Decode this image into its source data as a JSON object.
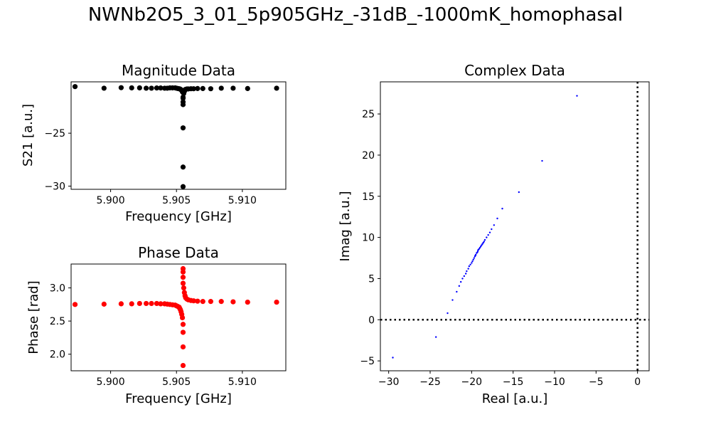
{
  "suptitle": "NWNb2O5_3_01_5p905GHz_-31dB_-1000mK_homophasal",
  "colors": {
    "magnitude": "#000000",
    "phase": "#ff0000",
    "complex": "#0000ff"
  },
  "chart_data": [
    {
      "id": "magnitude",
      "type": "scatter",
      "title": "Magnitude Data",
      "xlabel": "Frequency [GHz]",
      "ylabel": "S21 [a.u.]",
      "xlim": [
        5.897,
        5.9133
      ],
      "ylim": [
        -30.3,
        -20.15
      ],
      "xticks": [
        5.9,
        5.905,
        5.91
      ],
      "xtick_labels": [
        "5.900",
        "5.905",
        "5.910"
      ],
      "yticks": [
        -30,
        -25
      ],
      "ytick_labels": [
        "−30",
        "−25"
      ],
      "grid": false,
      "x": [
        5.8973,
        5.8995,
        5.9008,
        5.9016,
        5.9022,
        5.9027,
        5.9031,
        5.9035,
        5.9038,
        5.9041,
        5.9043,
        5.9045,
        5.9047,
        5.9049,
        5.905,
        5.9051,
        5.9052,
        5.90525,
        5.9053,
        5.90535,
        5.9054,
        5.90545,
        5.90545,
        5.9055,
        5.9055,
        5.9055,
        5.9055,
        5.9055,
        5.9055,
        5.9055,
        5.90555,
        5.9056,
        5.90565,
        5.9057,
        5.9058,
        5.9059,
        5.9061,
        5.9063,
        5.9066,
        5.907,
        5.9076,
        5.9084,
        5.9093,
        5.9104,
        5.9126
      ],
      "y": [
        -20.6,
        -20.75,
        -20.7,
        -20.72,
        -20.72,
        -20.75,
        -20.75,
        -20.73,
        -20.73,
        -20.75,
        -20.75,
        -20.72,
        -20.72,
        -20.72,
        -20.75,
        -20.78,
        -20.8,
        -20.82,
        -20.85,
        -20.9,
        -20.95,
        -21.0,
        -21.1,
        -30.05,
        -28.2,
        -24.5,
        -22.3,
        -22.05,
        -21.7,
        -21.6,
        -21.25,
        -21.05,
        -20.9,
        -20.85,
        -20.82,
        -20.82,
        -20.8,
        -20.8,
        -20.78,
        -20.78,
        -20.8,
        -20.75,
        -20.75,
        -20.78,
        -20.75
      ]
    },
    {
      "id": "phase",
      "type": "scatter",
      "title": "Phase Data",
      "xlabel": "Frequency [GHz]",
      "ylabel": "Phase [rad]",
      "xlim": [
        5.897,
        5.9133
      ],
      "ylim": [
        1.75,
        3.36
      ],
      "xticks": [
        5.9,
        5.905,
        5.91
      ],
      "xtick_labels": [
        "5.900",
        "5.905",
        "5.910"
      ],
      "yticks": [
        2.0,
        2.5,
        3.0
      ],
      "ytick_labels": [
        "2.0",
        "2.5",
        "3.0"
      ],
      "grid": false,
      "x": [
        5.8973,
        5.8995,
        5.9008,
        5.9016,
        5.9022,
        5.9027,
        5.9031,
        5.9035,
        5.9038,
        5.9041,
        5.9043,
        5.9045,
        5.9047,
        5.9049,
        5.905,
        5.9051,
        5.9052,
        5.90525,
        5.9053,
        5.90535,
        5.9054,
        5.90545,
        5.9055,
        5.9055,
        5.9055,
        5.9055,
        5.9055,
        5.9055,
        5.9055,
        5.9055,
        5.90555,
        5.9056,
        5.90565,
        5.9057,
        5.9058,
        5.9059,
        5.9061,
        5.9063,
        5.9066,
        5.907,
        5.9076,
        5.9084,
        5.9093,
        5.9104,
        5.9126
      ],
      "y": [
        2.75,
        2.755,
        2.76,
        2.76,
        2.765,
        2.765,
        2.765,
        2.765,
        2.76,
        2.76,
        2.755,
        2.75,
        2.745,
        2.74,
        2.73,
        2.72,
        2.71,
        2.69,
        2.67,
        2.64,
        2.6,
        2.55,
        2.45,
        2.33,
        2.11,
        1.83,
        3.29,
        3.24,
        3.16,
        3.07,
        3.0,
        2.93,
        2.88,
        2.85,
        2.83,
        2.82,
        2.81,
        2.805,
        2.8,
        2.795,
        2.795,
        2.795,
        2.79,
        2.785,
        2.785
      ]
    },
    {
      "id": "complex",
      "type": "scatter",
      "title": "Complex Data",
      "xlabel": "Real [a.u.]",
      "ylabel": "Imag [a.u.]",
      "xlim": [
        -31.0,
        1.4
      ],
      "ylim": [
        -6.2,
        28.9
      ],
      "xticks": [
        -30,
        -25,
        -20,
        -15,
        -10,
        -5,
        0
      ],
      "xtick_labels": [
        "−30",
        "−25",
        "−20",
        "−15",
        "−10",
        "−5",
        "0"
      ],
      "yticks": [
        -5,
        0,
        5,
        10,
        15,
        20,
        25
      ],
      "ytick_labels": [
        "−5",
        "0",
        "5",
        "10",
        "15",
        "20",
        "25"
      ],
      "grid": false,
      "reference_lines": {
        "x": 0,
        "y": 0,
        "style": "dotted"
      },
      "x": [
        -29.5,
        -24.3,
        -22.9,
        -22.3,
        -21.8,
        -21.5,
        -21.3,
        -21.1,
        -20.9,
        -20.7,
        -20.6,
        -20.4,
        -20.3,
        -20.15,
        -20.0,
        -19.9,
        -19.8,
        -19.7,
        -19.6,
        -19.55,
        -19.5,
        -19.4,
        -19.3,
        -19.25,
        -19.2,
        -19.1,
        -19.0,
        -18.9,
        -18.8,
        -18.7,
        -18.6,
        -18.5,
        -18.4,
        -18.2,
        -18.0,
        -17.8,
        -17.6,
        -17.3,
        -16.9,
        -16.3,
        -14.3,
        -11.5,
        -7.3
      ],
      "y": [
        -4.6,
        -2.1,
        0.8,
        2.4,
        3.4,
        4.1,
        4.6,
        5.0,
        5.3,
        5.6,
        5.9,
        6.2,
        6.5,
        6.7,
        6.9,
        7.1,
        7.3,
        7.5,
        7.7,
        7.8,
        7.9,
        8.1,
        8.2,
        8.35,
        8.5,
        8.6,
        8.75,
        8.9,
        9.05,
        9.2,
        9.35,
        9.5,
        9.7,
        10.0,
        10.3,
        10.6,
        11.0,
        11.5,
        12.3,
        13.5,
        15.5,
        19.3,
        27.2
      ]
    }
  ]
}
